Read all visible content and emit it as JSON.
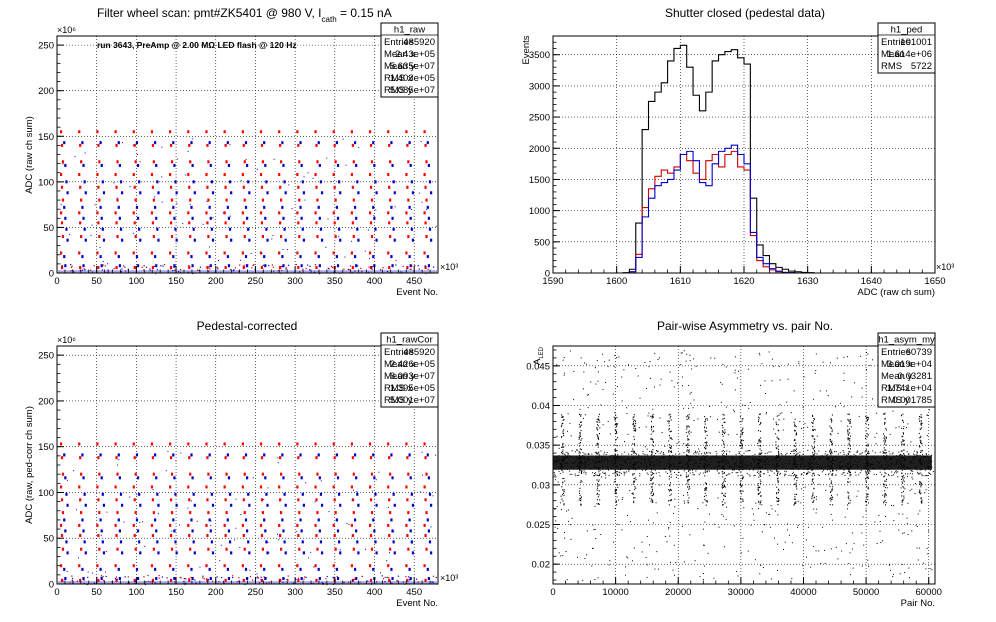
{
  "chart_data": [
    {
      "type": "scatter",
      "title": "Filter wheel scan: pmt#ZK5401 @   980 V, I",
      "title_sub": "cath",
      "title_tail": " = 0.15 nA",
      "annotation": "run 3643, PreAmp @ 2.00 MΩ LED flash @  120 Hz",
      "xlabel": "Event No.",
      "ylabel": "ADC (raw ch sum)",
      "x_exp": "×10³",
      "y_exp": "×10⁶",
      "xlim": [
        0,
        480
      ],
      "ylim": [
        0,
        260
      ],
      "xticks": [
        0,
        50,
        100,
        150,
        200,
        250,
        300,
        350,
        400,
        450
      ],
      "yticks": [
        0,
        50,
        100,
        150,
        200,
        250
      ],
      "grid": true,
      "colors": {
        "red": "#ff0000",
        "blue": "#0000cc",
        "black": "#000000"
      },
      "levels_red": [
        155,
        140,
        122,
        108,
        94,
        80,
        66,
        55,
        40,
        22,
        6
      ],
      "levels_blue": [
        143,
        118,
        100,
        88,
        72,
        60,
        48,
        36,
        18,
        8
      ],
      "period": 22.9,
      "stats": {
        "name": "h1_raw",
        "rows": [
          [
            "Entries",
            "485920"
          ],
          [
            "Mean x",
            "2.43e+05"
          ],
          [
            "Mean y",
            "5.635e+07"
          ],
          [
            "RMS x",
            "1.403e+05"
          ],
          [
            "RMS y",
            "5.085e+07"
          ]
        ]
      }
    },
    {
      "type": "line",
      "title": "Shutter closed (pedestal data)",
      "xlabel": "ADC (raw ch sum)",
      "ylabel": "Events",
      "x_exp": "×10³",
      "xlim": [
        1590,
        1650
      ],
      "ylim": [
        0,
        3800
      ],
      "xticks": [
        1590,
        1600,
        1610,
        1620,
        1630,
        1640,
        1650
      ],
      "yticks": [
        0,
        500,
        1000,
        1500,
        2000,
        2500,
        3000,
        3500
      ],
      "grid": true,
      "x": [
        1600,
        1601,
        1602,
        1603,
        1604,
        1605,
        1606,
        1607,
        1608,
        1609,
        1610,
        1611,
        1612,
        1613,
        1614,
        1615,
        1616,
        1617,
        1618,
        1619,
        1620,
        1621,
        1622,
        1623,
        1624,
        1625,
        1626,
        1627,
        1628,
        1629,
        1630
      ],
      "series": [
        {
          "color": "#000000",
          "values": [
            0,
            5,
            60,
            800,
            2300,
            2750,
            2900,
            3050,
            3400,
            3600,
            3650,
            3300,
            2850,
            2600,
            2900,
            3400,
            3500,
            3550,
            3580,
            3450,
            3350,
            1200,
            450,
            280,
            150,
            90,
            60,
            30,
            20,
            10,
            5
          ]
        },
        {
          "color": "#cc0000",
          "values": [
            0,
            0,
            20,
            300,
            1050,
            1350,
            1550,
            1650,
            1600,
            1700,
            1900,
            1800,
            1600,
            1500,
            1800,
            1900,
            1700,
            1900,
            1950,
            1700,
            1650,
            600,
            200,
            100,
            50,
            20,
            10,
            5,
            0,
            0,
            0
          ]
        },
        {
          "color": "#0000cc",
          "values": [
            0,
            0,
            20,
            250,
            900,
            1200,
            1400,
            1450,
            1500,
            1650,
            1900,
            1950,
            1800,
            1450,
            1400,
            1750,
            1950,
            2000,
            2050,
            1900,
            1750,
            650,
            250,
            150,
            70,
            30,
            10,
            5,
            0,
            0,
            0
          ]
        }
      ],
      "stats": {
        "name": "h1_ped",
        "rows": [
          [
            "Entries",
            "101001"
          ],
          [
            "Mean",
            "1.614e+06"
          ],
          [
            "RMS",
            "5722"
          ]
        ]
      }
    },
    {
      "type": "scatter",
      "title": "Pedestal-corrected",
      "xlabel": "Event No.",
      "ylabel": "ADC (raw, ped-corr ch sum)",
      "x_exp": "×10³",
      "y_exp": "×10⁶",
      "xlim": [
        0,
        480
      ],
      "ylim": [
        0,
        260
      ],
      "xticks": [
        0,
        50,
        100,
        150,
        200,
        250,
        300,
        350,
        400,
        450
      ],
      "yticks": [
        0,
        50,
        100,
        150,
        200,
        250
      ],
      "grid": true,
      "levels_red": [
        153,
        138,
        120,
        106,
        92,
        78,
        64,
        53,
        38,
        20,
        4
      ],
      "levels_blue": [
        141,
        116,
        98,
        86,
        70,
        58,
        46,
        34,
        16,
        6
      ],
      "period": 22.9,
      "stats": {
        "name": "h1_rawCor",
        "rows": [
          [
            "Entries",
            "485920"
          ],
          [
            "Mean x",
            "2.426e+05"
          ],
          [
            "Mean y",
            "6.093e+07"
          ],
          [
            "RMS x",
            "1.395e+05"
          ],
          [
            "RMS y",
            "5.001e+07"
          ]
        ]
      }
    },
    {
      "type": "scatter",
      "title": "Pair-wise Asymmetry vs. pair No.",
      "xlabel": "Pair No.",
      "ylabel": "A",
      "ylabel_sub": "LED",
      "xlim": [
        0,
        61000
      ],
      "ylim": [
        0.0175,
        0.0475
      ],
      "xticks": [
        0,
        10000,
        20000,
        30000,
        40000,
        50000,
        60000
      ],
      "yticks": [
        0.02,
        0.025,
        0.03,
        0.035,
        0.04,
        0.045
      ],
      "grid": true,
      "center": 0.0328,
      "spike_period": 2860,
      "stats": {
        "name": "h1_asym_my",
        "rows": [
          [
            "Entries",
            "60739"
          ],
          [
            "Mean x",
            "3.019e+04"
          ],
          [
            "Mean y",
            "0.03281"
          ],
          [
            "RMS x",
            "1.741e+04"
          ],
          [
            "RMS y",
            "0.001785"
          ]
        ]
      }
    }
  ]
}
